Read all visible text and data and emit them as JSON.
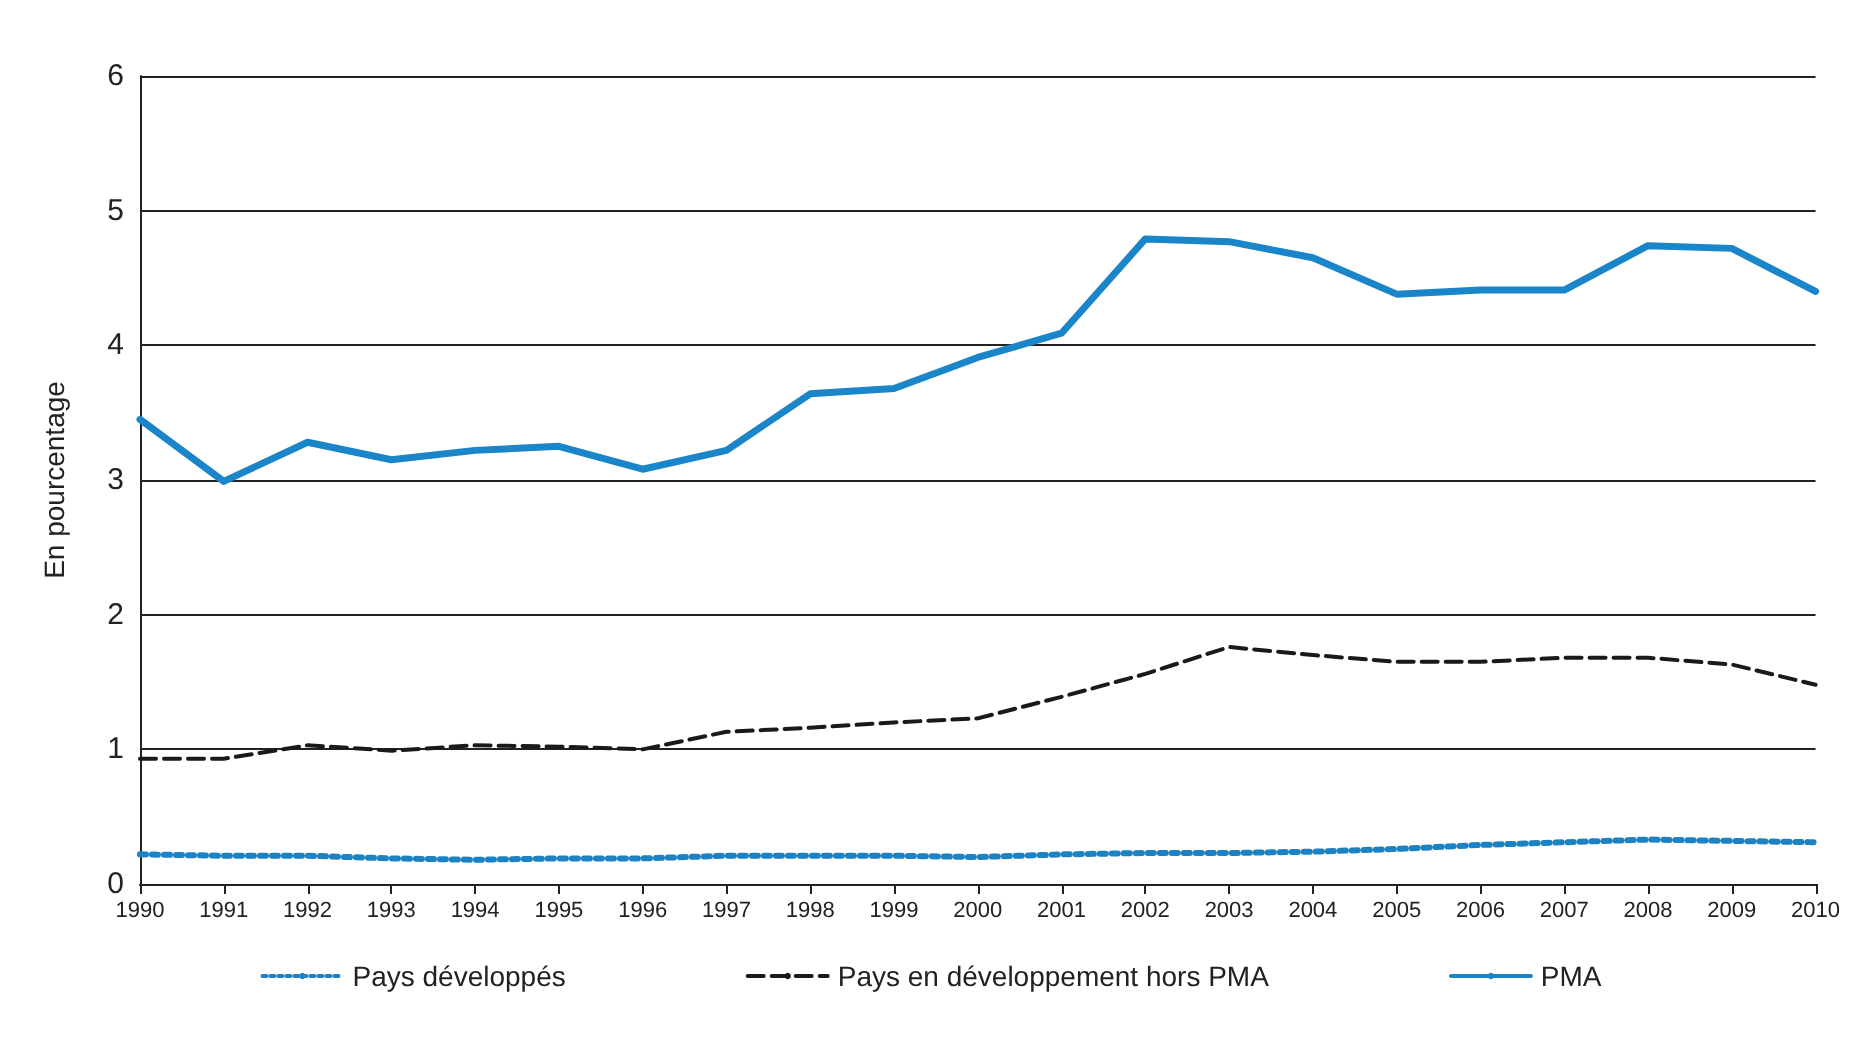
{
  "chart_data": {
    "type": "line",
    "ylabel": "En pourcentage",
    "categories": [
      "1990",
      "1991",
      "1992",
      "1993",
      "1994",
      "1995",
      "1996",
      "1997",
      "1998",
      "1999",
      "2000",
      "2001",
      "2002",
      "2003",
      "2004",
      "2005",
      "2006",
      "2007",
      "2008",
      "2009",
      "2010"
    ],
    "series": [
      {
        "name": "Pays développés",
        "color": "#1b82c4",
        "line_style": "dotted",
        "values": [
          0.22,
          0.21,
          0.21,
          0.19,
          0.18,
          0.19,
          0.19,
          0.21,
          0.21,
          0.21,
          0.2,
          0.22,
          0.23,
          0.23,
          0.24,
          0.26,
          0.29,
          0.31,
          0.33,
          0.32,
          0.31
        ]
      },
      {
        "name": "Pays en développement hors PMA",
        "color": "#1a1a1a",
        "line_style": "dashed",
        "values": [
          0.93,
          0.93,
          1.03,
          0.99,
          1.03,
          1.02,
          1.0,
          1.13,
          1.16,
          1.2,
          1.23,
          1.39,
          1.56,
          1.76,
          1.7,
          1.65,
          1.65,
          1.68,
          1.68,
          1.63,
          1.48
        ]
      },
      {
        "name": "PMA",
        "color": "#1a85c8",
        "line_style": "solid",
        "values": [
          3.45,
          2.99,
          3.28,
          3.15,
          3.22,
          3.25,
          3.08,
          3.22,
          3.64,
          3.68,
          3.91,
          4.09,
          4.79,
          4.77,
          4.65,
          4.38,
          4.41,
          4.41,
          4.74,
          4.72,
          4.4
        ]
      }
    ],
    "ylim": [
      0,
      6
    ],
    "yticks": [
      0,
      1,
      2,
      3,
      4,
      5,
      6
    ],
    "grid": "y",
    "legend": "bottom",
    "marker": "none"
  }
}
